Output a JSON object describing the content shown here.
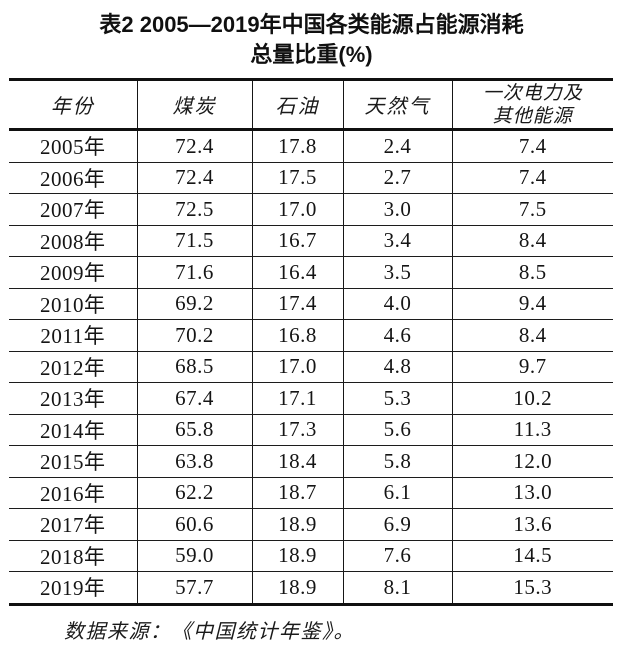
{
  "title": {
    "line1": "表2 2005—2019年中国各类能源占能源消耗",
    "line2": "总量比重(%)"
  },
  "chart_data": {
    "type": "table",
    "title": "表2 2005—2019年中国各类能源占能源消耗总量比重(%)",
    "unit": "%",
    "columns": [
      "年份",
      "煤炭",
      "石油",
      "天然气",
      "一次电力及\n其他能源"
    ],
    "categories": [
      "2005年",
      "2006年",
      "2007年",
      "2008年",
      "2009年",
      "2010年",
      "2011年",
      "2012年",
      "2013年",
      "2014年",
      "2015年",
      "2016年",
      "2017年",
      "2018年",
      "2019年"
    ],
    "series": [
      {
        "name": "煤炭",
        "values": [
          72.4,
          72.4,
          72.5,
          71.5,
          71.6,
          69.2,
          70.2,
          68.5,
          67.4,
          65.8,
          63.8,
          62.2,
          60.6,
          59.0,
          57.7
        ]
      },
      {
        "name": "石油",
        "values": [
          17.8,
          17.5,
          17.0,
          16.7,
          16.4,
          17.4,
          16.8,
          17.0,
          17.1,
          17.3,
          18.4,
          18.7,
          18.9,
          18.9,
          18.9
        ]
      },
      {
        "name": "天然气",
        "values": [
          2.4,
          2.7,
          3.0,
          3.4,
          3.5,
          4.0,
          4.6,
          4.8,
          5.3,
          5.6,
          5.8,
          6.1,
          6.9,
          7.6,
          8.1
        ]
      },
      {
        "name": "一次电力及其他能源",
        "values": [
          7.4,
          7.4,
          7.5,
          8.4,
          8.5,
          9.4,
          8.4,
          9.7,
          10.2,
          11.3,
          12.0,
          13.0,
          13.6,
          14.5,
          15.3
        ]
      }
    ],
    "source": "数据来源：《中国统计年鉴》。"
  }
}
